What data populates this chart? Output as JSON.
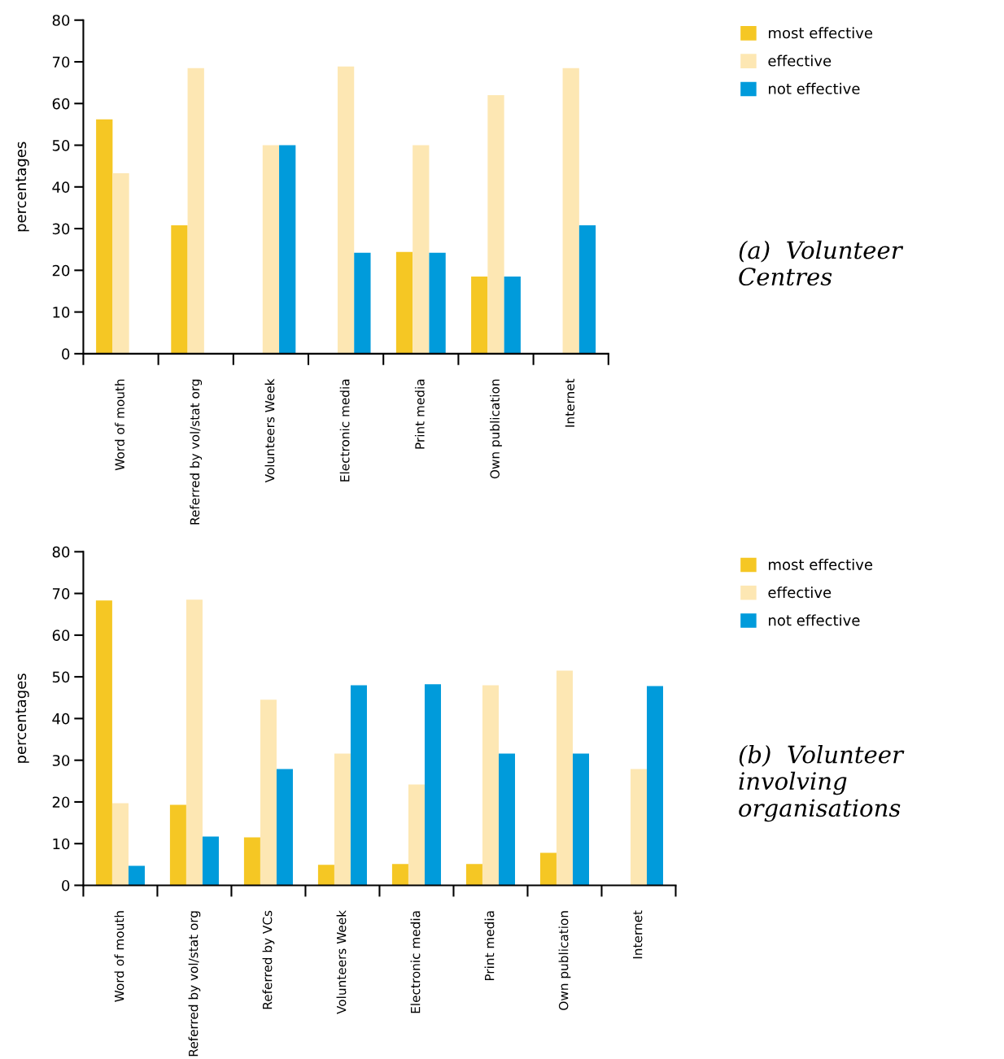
{
  "chart_data": [
    {
      "type": "bar",
      "ylabel": "percentages",
      "categories": [
        "Word of mouth",
        "Referred by vol/stat org",
        "Volunteers Week",
        "Electronic media",
        "Print media",
        "Own publication",
        "Internet"
      ],
      "series": [
        {
          "name": "most effective",
          "color": "#f5c724",
          "values": [
            56.2,
            30.8,
            null,
            null,
            24.4,
            18.5,
            null
          ]
        },
        {
          "name": "effective",
          "color": "#fde7b3",
          "values": [
            43.3,
            68.5,
            50,
            68.9,
            50,
            62,
            68.5
          ]
        },
        {
          "name": "not effective",
          "color": "#009bdb",
          "values": [
            null,
            null,
            50,
            24.2,
            24.2,
            18.5,
            30.8
          ]
        }
      ],
      "ylim": [
        0,
        80
      ],
      "yticks": [
        0,
        10,
        20,
        30,
        40,
        50,
        60,
        70,
        80
      ],
      "grid": false,
      "legend": "top right",
      "annotations": [
        "(a)  Volunteer Centres"
      ]
    },
    {
      "type": "bar",
      "ylabel": "percentages",
      "categories": [
        "Word of mouth",
        "Referred by vol/stat org",
        "Referred by VCs",
        "Volunteers Week",
        "Electronic media",
        "Print media",
        "Own publication",
        "Internet"
      ],
      "series": [
        {
          "name": "most effective",
          "color": "#f5c724",
          "values": [
            68.3,
            19.3,
            11.5,
            4.9,
            5.1,
            5.1,
            7.8,
            null
          ]
        },
        {
          "name": "effective",
          "color": "#fde7b3",
          "values": [
            19.7,
            68.5,
            44.5,
            31.6,
            24.2,
            48,
            51.5,
            27.9
          ]
        },
        {
          "name": "not effective",
          "color": "#009bdb",
          "values": [
            4.7,
            11.7,
            27.9,
            48,
            48.2,
            31.6,
            31.6,
            47.8
          ]
        }
      ],
      "ylim": [
        0,
        80
      ],
      "yticks": [
        0,
        10,
        20,
        30,
        40,
        50,
        60,
        70,
        80
      ],
      "grid": false,
      "legend": "top right",
      "annotations": [
        "(b)  Volunteer involving organisations"
      ]
    }
  ]
}
